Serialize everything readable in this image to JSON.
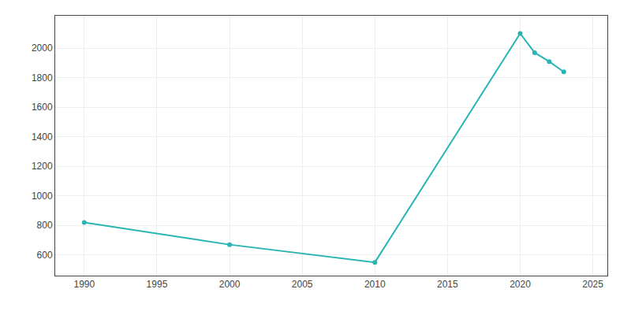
{
  "chart_data": {
    "type": "line",
    "x": [
      1990,
      2000,
      2010,
      2020,
      2021,
      2022,
      2023
    ],
    "values": [
      820,
      670,
      550,
      2100,
      1970,
      1910,
      1840
    ],
    "color": "#2ab5b5",
    "marker": "circle",
    "xlim": [
      1988,
      2026
    ],
    "ylim": [
      460,
      2220
    ],
    "xticks": [
      1990,
      1995,
      2000,
      2005,
      2010,
      2015,
      2020,
      2025
    ],
    "yticks": [
      600,
      800,
      1000,
      1200,
      1400,
      1600,
      1800,
      2000
    ],
    "grid": true
  }
}
